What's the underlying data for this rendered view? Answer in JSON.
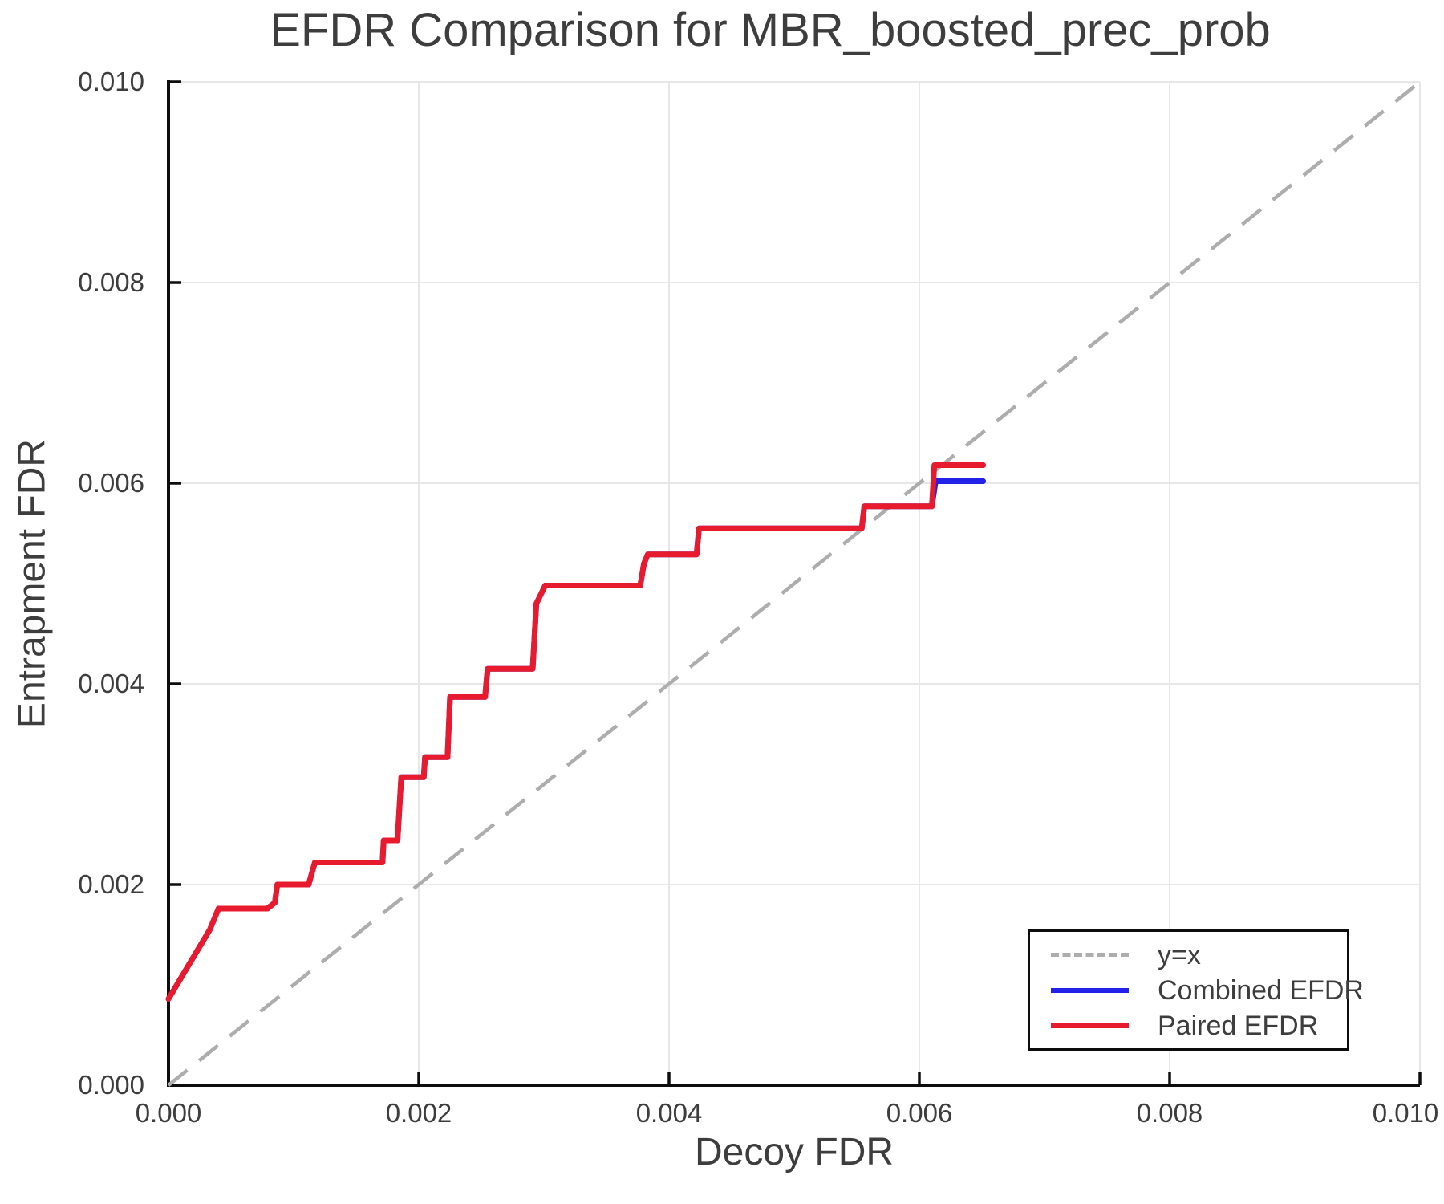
{
  "page_title": "EFDR Comparison for MBR_boosted_prec_prob",
  "colors": {
    "red_series": "#e81b2e",
    "blue_series": "#2222e8",
    "reference_gray": "#adadad",
    "grid": "#e7e7e7",
    "axis": "#0d0d0d",
    "text": "#3d3d3d",
    "background": "#ffffff"
  },
  "chart_data": {
    "type": "line",
    "title": "EFDR Comparison for MBR_boosted_prec_prob",
    "xlabel": "Decoy FDR",
    "ylabel": "Entrapment FDR",
    "xlim": [
      0.0,
      0.01
    ],
    "ylim": [
      0.0,
      0.01
    ],
    "grid": true,
    "xticks": {
      "values": [
        0.0,
        0.002,
        0.004,
        0.006,
        0.008,
        0.01
      ],
      "labels": [
        "0.000",
        "0.002",
        "0.004",
        "0.006",
        "0.008",
        "0.010"
      ]
    },
    "yticks": {
      "values": [
        0.0,
        0.002,
        0.004,
        0.006,
        0.008,
        0.01
      ],
      "labels": [
        "0.000",
        "0.002",
        "0.004",
        "0.006",
        "0.008",
        "0.010"
      ]
    },
    "reference": {
      "label": "y=x",
      "style": "dashed",
      "color": "#adadad",
      "points": [
        [
          0.0,
          0.0
        ],
        [
          0.01,
          0.01
        ]
      ]
    },
    "series": [
      {
        "name": "Combined EFDR",
        "color": "#2222e8",
        "points": [
          [
            0.0,
            0.00086
          ],
          [
            0.00033,
            0.00155
          ],
          [
            0.0004,
            0.00176
          ],
          [
            0.00079,
            0.00176
          ],
          [
            0.00085,
            0.00182
          ],
          [
            0.00087,
            0.002
          ],
          [
            0.00112,
            0.002
          ],
          [
            0.00117,
            0.00222
          ],
          [
            0.00171,
            0.00222
          ],
          [
            0.00172,
            0.00244
          ],
          [
            0.00183,
            0.00244
          ],
          [
            0.00186,
            0.00307
          ],
          [
            0.00204,
            0.00307
          ],
          [
            0.00205,
            0.00327
          ],
          [
            0.00223,
            0.00327
          ],
          [
            0.00225,
            0.00387
          ],
          [
            0.00253,
            0.00387
          ],
          [
            0.00255,
            0.00415
          ],
          [
            0.00291,
            0.00415
          ],
          [
            0.00294,
            0.0048
          ],
          [
            0.00301,
            0.00498
          ],
          [
            0.00377,
            0.00498
          ],
          [
            0.0038,
            0.0052
          ],
          [
            0.00383,
            0.00529
          ],
          [
            0.00422,
            0.00529
          ],
          [
            0.00424,
            0.00555
          ],
          [
            0.00554,
            0.00555
          ],
          [
            0.00556,
            0.00577
          ],
          [
            0.0061,
            0.00577
          ],
          [
            0.00613,
            0.00602
          ],
          [
            0.00651,
            0.00602
          ]
        ]
      },
      {
        "name": "Paired EFDR",
        "color": "#e81b2e",
        "points": [
          [
            0.0,
            0.00086
          ],
          [
            0.00033,
            0.00155
          ],
          [
            0.0004,
            0.00176
          ],
          [
            0.00079,
            0.00176
          ],
          [
            0.00085,
            0.00182
          ],
          [
            0.00087,
            0.002
          ],
          [
            0.00112,
            0.002
          ],
          [
            0.00117,
            0.00222
          ],
          [
            0.00171,
            0.00222
          ],
          [
            0.00172,
            0.00244
          ],
          [
            0.00183,
            0.00244
          ],
          [
            0.00186,
            0.00307
          ],
          [
            0.00204,
            0.00307
          ],
          [
            0.00205,
            0.00327
          ],
          [
            0.00223,
            0.00327
          ],
          [
            0.00225,
            0.00387
          ],
          [
            0.00253,
            0.00387
          ],
          [
            0.00255,
            0.00415
          ],
          [
            0.00291,
            0.00415
          ],
          [
            0.00294,
            0.0048
          ],
          [
            0.00301,
            0.00498
          ],
          [
            0.00377,
            0.00498
          ],
          [
            0.0038,
            0.0052
          ],
          [
            0.00383,
            0.00529
          ],
          [
            0.00422,
            0.00529
          ],
          [
            0.00424,
            0.00555
          ],
          [
            0.00554,
            0.00555
          ],
          [
            0.00556,
            0.00577
          ],
          [
            0.0061,
            0.00577
          ],
          [
            0.00612,
            0.00618
          ],
          [
            0.00651,
            0.00618
          ]
        ]
      }
    ],
    "legend": {
      "position": "lower right",
      "entries": [
        {
          "label": "y=x",
          "style": "dashed",
          "color": "#adadad"
        },
        {
          "label": "Combined EFDR",
          "style": "solid",
          "color": "#2222e8"
        },
        {
          "label": "Paired EFDR",
          "style": "solid",
          "color": "#e81b2e"
        }
      ]
    }
  }
}
